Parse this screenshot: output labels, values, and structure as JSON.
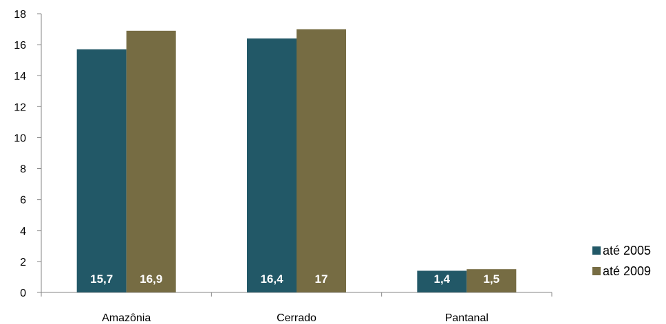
{
  "chart_data": {
    "type": "bar",
    "title": "",
    "xlabel": "",
    "ylabel": "",
    "categories": [
      "Amazônia",
      "Cerrado",
      "Pantanal"
    ],
    "series": [
      {
        "name": "até 2005",
        "color": "#225867",
        "values": [
          15.7,
          16.4,
          1.4
        ],
        "labels": [
          "15,7",
          "16,4",
          "1,4"
        ]
      },
      {
        "name": "até 2009",
        "color": "#766c43",
        "values": [
          16.9,
          17,
          1.5
        ],
        "labels": [
          "16,9",
          "17",
          "1,5"
        ]
      }
    ],
    "ylim": [
      0,
      18
    ],
    "yticks": [
      0,
      2,
      4,
      6,
      8,
      10,
      12,
      14,
      16,
      18
    ],
    "grid": false,
    "legend_position": "right-bottom"
  }
}
